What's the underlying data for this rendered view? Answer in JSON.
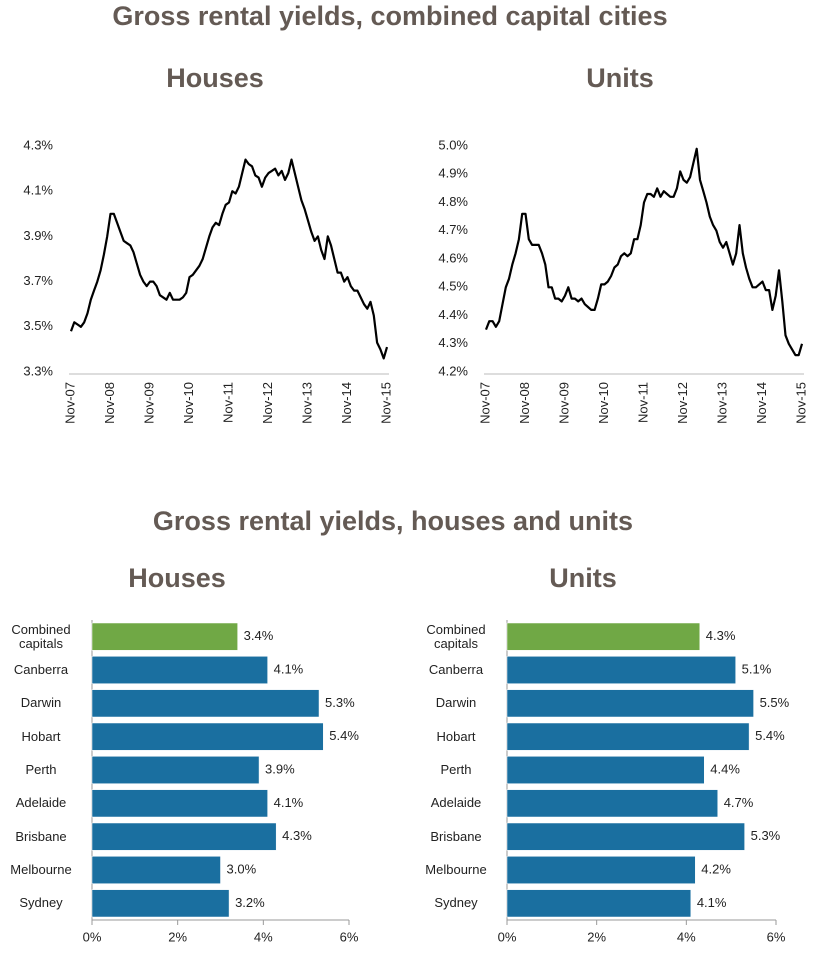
{
  "headings": [
    "Gross rental yields, combined capital cities",
    "Gross rental yields, houses and units"
  ],
  "chart_data": [
    {
      "type": "line",
      "title": "Houses",
      "color": "#000000",
      "x": [
        "Nov-07",
        null,
        null,
        null,
        null,
        null,
        null,
        null,
        null,
        null,
        null,
        null,
        "Nov-08",
        null,
        null,
        null,
        null,
        null,
        null,
        null,
        null,
        null,
        null,
        null,
        "Nov-09",
        null,
        null,
        null,
        null,
        null,
        null,
        null,
        null,
        null,
        null,
        null,
        "Nov-10",
        null,
        null,
        null,
        null,
        null,
        null,
        null,
        null,
        null,
        null,
        null,
        "Nov-11",
        null,
        null,
        null,
        null,
        null,
        null,
        null,
        null,
        null,
        null,
        null,
        "Nov-12",
        null,
        null,
        null,
        null,
        null,
        null,
        null,
        null,
        null,
        null,
        null,
        "Nov-13",
        null,
        null,
        null,
        null,
        null,
        null,
        null,
        null,
        null,
        null,
        null,
        "Nov-14",
        null,
        null,
        null,
        null,
        null,
        null,
        null,
        null,
        null,
        null,
        null,
        "Nov-15"
      ],
      "values": [
        3.48,
        3.52,
        3.51,
        3.5,
        3.52,
        3.56,
        3.62,
        3.66,
        3.7,
        3.75,
        3.82,
        3.9,
        4.0,
        4.0,
        3.96,
        3.92,
        3.88,
        3.87,
        3.86,
        3.83,
        3.78,
        3.73,
        3.7,
        3.68,
        3.7,
        3.7,
        3.68,
        3.64,
        3.63,
        3.62,
        3.65,
        3.62,
        3.62,
        3.62,
        3.63,
        3.65,
        3.72,
        3.73,
        3.75,
        3.77,
        3.8,
        3.85,
        3.9,
        3.94,
        3.96,
        3.95,
        4.0,
        4.04,
        4.05,
        4.1,
        4.09,
        4.12,
        4.18,
        4.24,
        4.22,
        4.21,
        4.17,
        4.16,
        4.12,
        4.16,
        4.18,
        4.19,
        4.2,
        4.17,
        4.19,
        4.15,
        4.18,
        4.24,
        4.18,
        4.12,
        4.06,
        4.02,
        3.97,
        3.92,
        3.88,
        3.9,
        3.84,
        3.8,
        3.9,
        3.86,
        3.8,
        3.74,
        3.74,
        3.7,
        3.72,
        3.68,
        3.66,
        3.66,
        3.63,
        3.6,
        3.58,
        3.61,
        3.55,
        3.43,
        3.4,
        3.36,
        3.41
      ],
      "ylim": [
        3.3,
        4.3
      ],
      "yticks": [
        {
          "value": 3.3,
          "label": "3.3%"
        },
        {
          "value": 3.5,
          "label": "3.5%"
        },
        {
          "value": 3.7,
          "label": "3.7%"
        },
        {
          "value": 3.9,
          "label": "3.9%"
        },
        {
          "value": 4.1,
          "label": "4.1%"
        },
        {
          "value": 4.3,
          "label": "4.3%"
        }
      ]
    },
    {
      "type": "line",
      "title": "Units",
      "color": "#000000",
      "x": [
        "Nov-07",
        null,
        null,
        null,
        null,
        null,
        null,
        null,
        null,
        null,
        null,
        null,
        "Nov-08",
        null,
        null,
        null,
        null,
        null,
        null,
        null,
        null,
        null,
        null,
        null,
        "Nov-09",
        null,
        null,
        null,
        null,
        null,
        null,
        null,
        null,
        null,
        null,
        null,
        "Nov-10",
        null,
        null,
        null,
        null,
        null,
        null,
        null,
        null,
        null,
        null,
        null,
        "Nov-11",
        null,
        null,
        null,
        null,
        null,
        null,
        null,
        null,
        null,
        null,
        null,
        "Nov-12",
        null,
        null,
        null,
        null,
        null,
        null,
        null,
        null,
        null,
        null,
        null,
        "Nov-13",
        null,
        null,
        null,
        null,
        null,
        null,
        null,
        null,
        null,
        null,
        null,
        "Nov-14",
        null,
        null,
        null,
        null,
        null,
        null,
        null,
        null,
        null,
        null,
        null,
        "Nov-15"
      ],
      "values": [
        4.35,
        4.38,
        4.38,
        4.36,
        4.38,
        4.44,
        4.5,
        4.53,
        4.58,
        4.62,
        4.67,
        4.76,
        4.76,
        4.67,
        4.65,
        4.65,
        4.65,
        4.62,
        4.58,
        4.5,
        4.5,
        4.46,
        4.46,
        4.45,
        4.47,
        4.5,
        4.46,
        4.46,
        4.45,
        4.46,
        4.44,
        4.43,
        4.42,
        4.42,
        4.46,
        4.51,
        4.51,
        4.52,
        4.54,
        4.57,
        4.58,
        4.61,
        4.62,
        4.61,
        4.62,
        4.67,
        4.67,
        4.72,
        4.8,
        4.83,
        4.83,
        4.82,
        4.85,
        4.82,
        4.84,
        4.83,
        4.82,
        4.82,
        4.85,
        4.91,
        4.88,
        4.87,
        4.89,
        4.94,
        4.99,
        4.88,
        4.84,
        4.8,
        4.75,
        4.72,
        4.7,
        4.66,
        4.64,
        4.66,
        4.62,
        4.58,
        4.62,
        4.72,
        4.62,
        4.57,
        4.53,
        4.5,
        4.5,
        4.51,
        4.52,
        4.49,
        4.49,
        4.42,
        4.47,
        4.56,
        4.45,
        4.33,
        4.3,
        4.28,
        4.26,
        4.26,
        4.3
      ],
      "ylim": [
        4.2,
        5.0
      ],
      "yticks": [
        {
          "value": 4.2,
          "label": "4.2%"
        },
        {
          "value": 4.3,
          "label": "4.3%"
        },
        {
          "value": 4.4,
          "label": "4.4%"
        },
        {
          "value": 4.5,
          "label": "4.5%"
        },
        {
          "value": 4.6,
          "label": "4.6%"
        },
        {
          "value": 4.7,
          "label": "4.7%"
        },
        {
          "value": 4.8,
          "label": "4.8%"
        },
        {
          "value": 4.9,
          "label": "4.9%"
        },
        {
          "value": 5.0,
          "label": "5.0%"
        }
      ]
    },
    {
      "type": "hbar",
      "title": "Houses",
      "categories": [
        "Combined capitals",
        "Canberra",
        "Darwin",
        "Hobart",
        "Perth",
        "Adelaide",
        "Brisbane",
        "Melbourne",
        "Sydney"
      ],
      "values": [
        3.4,
        4.1,
        5.3,
        5.4,
        3.9,
        4.1,
        4.3,
        3.0,
        3.2
      ],
      "value_labels": [
        "3.4%",
        "4.1%",
        "5.3%",
        "5.4%",
        "3.9%",
        "4.1%",
        "4.3%",
        "3.0%",
        "3.2%"
      ],
      "colors": [
        "#70a845",
        "#1a6fa0",
        "#1a6fa0",
        "#1a6fa0",
        "#1a6fa0",
        "#1a6fa0",
        "#1a6fa0",
        "#1a6fa0",
        "#1a6fa0"
      ],
      "xlim": [
        0,
        6
      ],
      "xticks": [
        {
          "value": 0,
          "label": "0%"
        },
        {
          "value": 2,
          "label": "2%"
        },
        {
          "value": 4,
          "label": "4%"
        },
        {
          "value": 6,
          "label": "6%"
        }
      ]
    },
    {
      "type": "hbar",
      "title": "Units",
      "categories": [
        "Combined capitals",
        "Canberra",
        "Darwin",
        "Hobart",
        "Perth",
        "Adelaide",
        "Brisbane",
        "Melbourne",
        "Sydney"
      ],
      "values": [
        4.3,
        5.1,
        5.5,
        5.4,
        4.4,
        4.7,
        5.3,
        4.2,
        4.1
      ],
      "value_labels": [
        "4.3%",
        "5.1%",
        "5.5%",
        "5.4%",
        "4.4%",
        "4.7%",
        "5.3%",
        "4.2%",
        "4.1%"
      ],
      "colors": [
        "#70a845",
        "#1a6fa0",
        "#1a6fa0",
        "#1a6fa0",
        "#1a6fa0",
        "#1a6fa0",
        "#1a6fa0",
        "#1a6fa0",
        "#1a6fa0"
      ],
      "xlim": [
        0,
        6
      ],
      "xticks": [
        {
          "value": 0,
          "label": "0%"
        },
        {
          "value": 2,
          "label": "2%"
        },
        {
          "value": 4,
          "label": "4%"
        },
        {
          "value": 6,
          "label": "6%"
        }
      ]
    }
  ]
}
